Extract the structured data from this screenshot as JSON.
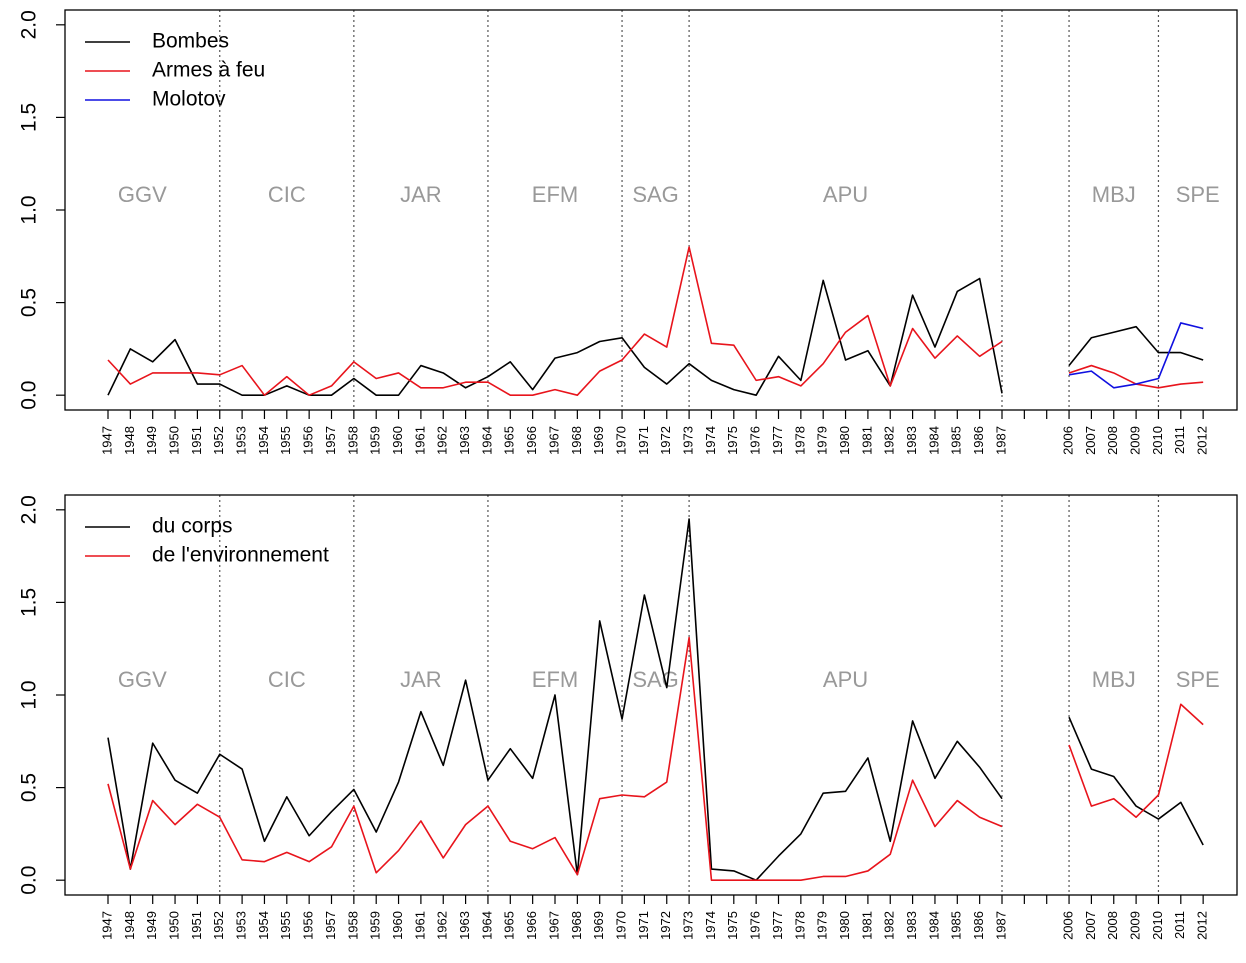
{
  "chart_data": [
    {
      "type": "line",
      "categories": [
        "1947",
        "1948",
        "1949",
        "1950",
        "1951",
        "1952",
        "1953",
        "1954",
        "1955",
        "1956",
        "1957",
        "1958",
        "1959",
        "1960",
        "1961",
        "1962",
        "1963",
        "1964",
        "1965",
        "1966",
        "1967",
        "1968",
        "1969",
        "1970",
        "1971",
        "1972",
        "1973",
        "1974",
        "1975",
        "1976",
        "1977",
        "1978",
        "1979",
        "1980",
        "1981",
        "1982",
        "1983",
        "1984",
        "1985",
        "1986",
        "1987",
        null,
        null,
        "2006",
        "2007",
        "2008",
        "2009",
        "2010",
        "2011",
        "2012"
      ],
      "series": [
        {
          "name": "Bombes",
          "color": "#000000",
          "values": [
            0,
            0.25,
            0.18,
            0.3,
            0.06,
            0.06,
            0,
            0,
            0.05,
            0,
            0,
            0.09,
            0,
            0,
            0.16,
            0.12,
            0.04,
            0.1,
            0.18,
            0.03,
            0.2,
            0.23,
            0.29,
            0.31,
            0.15,
            0.06,
            0.17,
            0.08,
            0.03,
            0,
            0.21,
            0.08,
            0.62,
            0.19,
            0.24,
            0.05,
            0.54,
            0.26,
            0.56,
            0.63,
            0.01,
            null,
            null,
            0.16,
            0.31,
            0.34,
            0.37,
            0.23,
            0.23,
            0.19
          ]
        },
        {
          "name": "Armes à feu",
          "color": "#e8141c",
          "values": [
            0.19,
            0.06,
            0.12,
            0.12,
            0.12,
            0.11,
            0.16,
            0,
            0.1,
            0,
            0.05,
            0.18,
            0.09,
            0.12,
            0.04,
            0.04,
            0.07,
            0.07,
            0,
            0,
            0.03,
            0,
            0.13,
            0.19,
            0.33,
            0.26,
            0.8,
            0.28,
            0.27,
            0.08,
            0.1,
            0.05,
            0.17,
            0.34,
            0.43,
            0.05,
            0.36,
            0.2,
            0.32,
            0.21,
            0.29,
            null,
            null,
            0.12,
            0.16,
            0.12,
            0.06,
            0.04,
            0.06,
            0.07
          ]
        },
        {
          "name": "Molotov",
          "color": "#1010e0",
          "values": [
            null,
            null,
            null,
            null,
            null,
            null,
            null,
            null,
            null,
            null,
            null,
            null,
            null,
            null,
            null,
            null,
            null,
            null,
            null,
            null,
            null,
            null,
            null,
            null,
            null,
            null,
            null,
            null,
            null,
            null,
            null,
            null,
            null,
            null,
            null,
            null,
            null,
            null,
            null,
            null,
            null,
            null,
            null,
            0.11,
            0.13,
            0.04,
            0.06,
            0.09,
            0.39,
            0.36
          ]
        }
      ],
      "ylim": [
        -0.08,
        2.08
      ],
      "yticks": [
        {
          "value": 0,
          "label": "0.0"
        },
        {
          "value": 0.5,
          "label": "0.5"
        },
        {
          "value": 1,
          "label": "1.0"
        },
        {
          "value": 1.5,
          "label": "1.5"
        },
        {
          "value": 2,
          "label": "2.0"
        }
      ],
      "legend": "topleft",
      "dividers": [
        "1952",
        "1958",
        "1964",
        "1970",
        "1973",
        "1987",
        "2006",
        "2010"
      ],
      "periods": [
        {
          "label": "GGV",
          "from": null,
          "to": "1952"
        },
        {
          "label": "CIC",
          "from": "1952",
          "to": "1958"
        },
        {
          "label": "JAR",
          "from": "1958",
          "to": "1964"
        },
        {
          "label": "EFM",
          "from": "1964",
          "to": "1970"
        },
        {
          "label": "SAG",
          "from": "1970",
          "to": "1973"
        },
        {
          "label": "APU",
          "from": "1973",
          "to": "1987"
        },
        {
          "label": "MBJ",
          "from": "2006",
          "to": "2010"
        },
        {
          "label": "SPE",
          "from": "2010",
          "to": null
        }
      ]
    },
    {
      "type": "line",
      "categories": [
        "1947",
        "1948",
        "1949",
        "1950",
        "1951",
        "1952",
        "1953",
        "1954",
        "1955",
        "1956",
        "1957",
        "1958",
        "1959",
        "1960",
        "1961",
        "1962",
        "1963",
        "1964",
        "1965",
        "1966",
        "1967",
        "1968",
        "1969",
        "1970",
        "1971",
        "1972",
        "1973",
        "1974",
        "1975",
        "1976",
        "1977",
        "1978",
        "1979",
        "1980",
        "1981",
        "1982",
        "1983",
        "1984",
        "1985",
        "1986",
        "1987",
        null,
        null,
        "2006",
        "2007",
        "2008",
        "2009",
        "2010",
        "2011",
        "2012"
      ],
      "series": [
        {
          "name": "du corps",
          "color": "#000000",
          "values": [
            0.77,
            0.06,
            0.74,
            0.54,
            0.47,
            0.68,
            0.6,
            0.21,
            0.45,
            0.24,
            0.37,
            0.49,
            0.26,
            0.53,
            0.91,
            0.62,
            1.08,
            0.54,
            0.71,
            0.55,
            1.0,
            0.03,
            1.4,
            0.87,
            1.54,
            1.04,
            1.95,
            0.06,
            0.05,
            0,
            0.13,
            0.25,
            0.47,
            0.48,
            0.66,
            0.21,
            0.86,
            0.55,
            0.75,
            0.61,
            0.44,
            null,
            null,
            0.88,
            0.6,
            0.56,
            0.4,
            0.33,
            0.42,
            0.19
          ]
        },
        {
          "name": "de l'environnement",
          "color": "#e8141c",
          "values": [
            0.52,
            0.06,
            0.43,
            0.3,
            0.41,
            0.34,
            0.11,
            0.1,
            0.15,
            0.1,
            0.18,
            0.4,
            0.04,
            0.16,
            0.32,
            0.12,
            0.3,
            0.4,
            0.21,
            0.17,
            0.23,
            0.03,
            0.44,
            0.46,
            0.45,
            0.53,
            1.31,
            0,
            0,
            0,
            0,
            0,
            0.02,
            0.02,
            0.05,
            0.14,
            0.54,
            0.29,
            0.43,
            0.34,
            0.29,
            null,
            null,
            0.73,
            0.4,
            0.44,
            0.34,
            0.46,
            0.95,
            0.84
          ]
        }
      ],
      "ylim": [
        -0.08,
        2.08
      ],
      "yticks": [
        {
          "value": 0,
          "label": "0.0"
        },
        {
          "value": 0.5,
          "label": "0.5"
        },
        {
          "value": 1,
          "label": "1.0"
        },
        {
          "value": 1.5,
          "label": "1.5"
        },
        {
          "value": 2,
          "label": "2.0"
        }
      ],
      "legend": "topleft",
      "dividers": [
        "1952",
        "1958",
        "1964",
        "1970",
        "1973",
        "1987",
        "2006",
        "2010"
      ],
      "periods": [
        {
          "label": "GGV",
          "from": null,
          "to": "1952"
        },
        {
          "label": "CIC",
          "from": "1952",
          "to": "1958"
        },
        {
          "label": "JAR",
          "from": "1958",
          "to": "1964"
        },
        {
          "label": "EFM",
          "from": "1964",
          "to": "1970"
        },
        {
          "label": "SAG",
          "from": "1970",
          "to": "1973"
        },
        {
          "label": "APU",
          "from": "1973",
          "to": "1987"
        },
        {
          "label": "MBJ",
          "from": "2006",
          "to": "2010"
        },
        {
          "label": "SPE",
          "from": "2010",
          "to": null
        }
      ]
    }
  ]
}
